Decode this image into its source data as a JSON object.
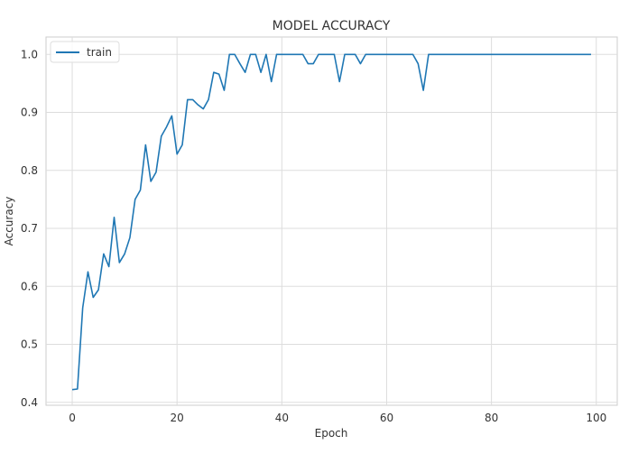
{
  "chart_data": {
    "type": "line",
    "title": "MODEL ACCURACY",
    "xlabel": "Epoch",
    "ylabel": "Accuracy",
    "xlim": [
      -5,
      104
    ],
    "ylim": [
      0.395,
      1.03
    ],
    "xticks": [
      0,
      20,
      40,
      60,
      80,
      100
    ],
    "xtick_labels": [
      "0",
      "20",
      "40",
      "60",
      "80",
      "100"
    ],
    "yticks": [
      0.4,
      0.5,
      0.6,
      0.7,
      0.8,
      0.9,
      1.0
    ],
    "ytick_labels": [
      "0.4",
      "0.5",
      "0.6",
      "0.7",
      "0.8",
      "0.9",
      "1.0"
    ],
    "grid": true,
    "legend_position": "top-left",
    "series": [
      {
        "name": "train",
        "color": "#1f77b4",
        "x": [
          0,
          1,
          2,
          3,
          4,
          5,
          6,
          7,
          8,
          9,
          10,
          11,
          12,
          13,
          14,
          15,
          16,
          17,
          18,
          19,
          20,
          21,
          22,
          23,
          24,
          25,
          26,
          27,
          28,
          29,
          30,
          31,
          32,
          33,
          34,
          35,
          36,
          37,
          38,
          39,
          40,
          41,
          42,
          43,
          44,
          45,
          46,
          47,
          48,
          49,
          50,
          51,
          52,
          53,
          54,
          55,
          56,
          57,
          58,
          59,
          60,
          61,
          62,
          63,
          64,
          65,
          66,
          67,
          68,
          69,
          70,
          71,
          72,
          73,
          74,
          75,
          76,
          77,
          78,
          79,
          80,
          81,
          82,
          83,
          84,
          85,
          86,
          87,
          88,
          89,
          90,
          91,
          92,
          93,
          94,
          95,
          96,
          97,
          98,
          99
        ],
        "values": [
          0.422,
          0.423,
          0.563,
          0.625,
          0.581,
          0.594,
          0.656,
          0.634,
          0.719,
          0.641,
          0.656,
          0.684,
          0.75,
          0.766,
          0.844,
          0.781,
          0.797,
          0.859,
          0.875,
          0.894,
          0.828,
          0.844,
          0.922,
          0.922,
          0.913,
          0.906,
          0.922,
          0.969,
          0.966,
          0.938,
          1.0,
          1.0,
          0.984,
          0.969,
          1.0,
          1.0,
          0.969,
          1.0,
          0.953,
          1.0,
          1.0,
          1.0,
          1.0,
          1.0,
          1.0,
          0.984,
          0.984,
          1.0,
          1.0,
          1.0,
          1.0,
          0.953,
          1.0,
          1.0,
          1.0,
          0.984,
          1.0,
          1.0,
          1.0,
          1.0,
          1.0,
          1.0,
          1.0,
          1.0,
          1.0,
          1.0,
          0.984,
          0.938,
          1.0,
          1.0,
          1.0,
          1.0,
          1.0,
          1.0,
          1.0,
          1.0,
          1.0,
          1.0,
          1.0,
          1.0,
          1.0,
          1.0,
          1.0,
          1.0,
          1.0,
          1.0,
          1.0,
          1.0,
          1.0,
          1.0,
          1.0,
          1.0,
          1.0,
          1.0,
          1.0,
          1.0,
          1.0,
          1.0,
          1.0,
          1.0
        ]
      }
    ]
  }
}
